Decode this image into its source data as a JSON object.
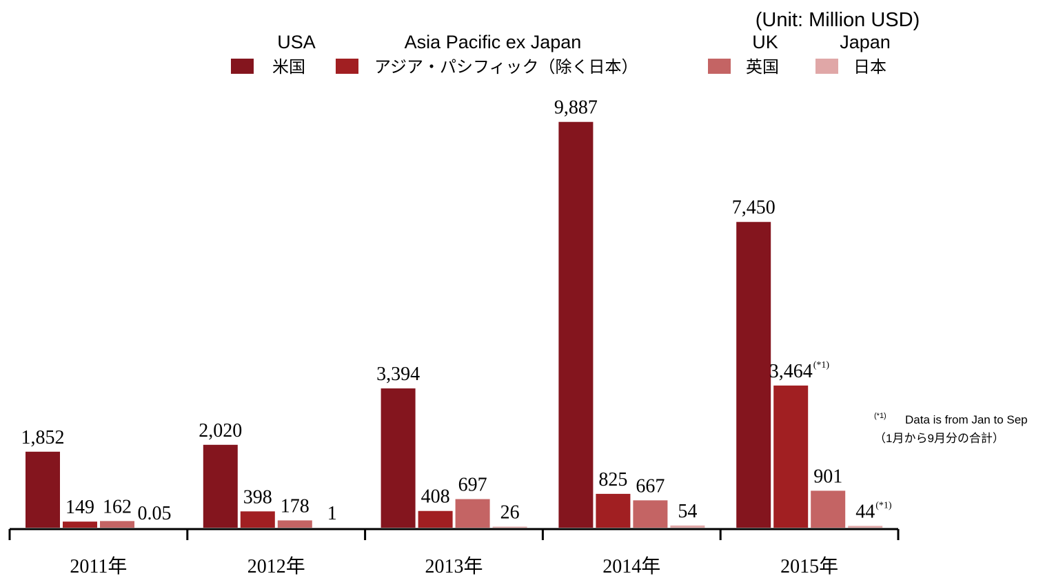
{
  "chart_data": {
    "type": "bar",
    "unit_note": "(Unit: Million USD)",
    "categories": [
      "2011年",
      "2012年",
      "2013年",
      "2014年",
      "2015年"
    ],
    "series": [
      {
        "name": "USA",
        "name_ja": "米国",
        "color": "#84151e",
        "values": [
          1852,
          2020,
          3394,
          9887,
          7450
        ],
        "value_labels": [
          "1,852",
          "2,020",
          "3,394",
          "9,887",
          "7,450"
        ]
      },
      {
        "name": "Asia Pacific ex Japan",
        "name_ja": "アジア・パシフィック（除く日本）",
        "color": "#a11f22",
        "values": [
          149,
          398,
          408,
          825,
          3464
        ],
        "value_labels": [
          "149",
          "398",
          "408",
          "825",
          "3,464"
        ],
        "value_notes": [
          null,
          null,
          null,
          null,
          "(*1)"
        ]
      },
      {
        "name": "UK",
        "name_ja": "英国",
        "color": "#c46464",
        "values": [
          162,
          178,
          697,
          667,
          901
        ],
        "value_labels": [
          "162",
          "178",
          "697",
          "667",
          "901"
        ]
      },
      {
        "name": "Japan",
        "name_ja": "日本",
        "color": "#e0a7a7",
        "values": [
          0.05,
          1,
          26,
          54,
          44
        ],
        "value_labels": [
          "0.05",
          "1",
          "26",
          "54",
          "44"
        ],
        "value_notes": [
          null,
          null,
          null,
          null,
          "(*1)"
        ]
      }
    ],
    "ylim": [
      0,
      10000
    ],
    "footnote": {
      "marker": "(*1)",
      "text": "Data is  from Jan to Sep",
      "text_ja": "（1月から9月分の合計）"
    }
  }
}
